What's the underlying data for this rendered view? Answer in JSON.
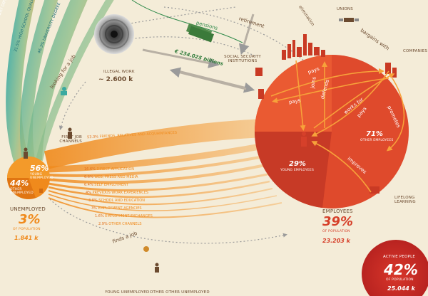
{
  "colors": {
    "background": "#f4ecd8",
    "orange": "#f08a1c",
    "red": "#d6402a",
    "dark_red": "#b83220",
    "teal": "#3aa9a0",
    "brown": "#6b4a2f"
  },
  "top_left_labels": {
    "diploma": "ARY DIPLOMA",
    "high_school": "31.5% HIGH SCHOOL QUALIFICATION",
    "university": "46.3% UNIVERSITY DEGREE"
  },
  "looking_for_job": "looking for a job",
  "illegal_work": {
    "label": "ILLEGAL WORK",
    "value": "~ 2.600 k"
  },
  "pensions": {
    "label": "pensions",
    "value": "€ 234.025 billions"
  },
  "retirement": "retirement",
  "elimination": "elimination",
  "social_security": "SOCIAL SECURITY INSTITUTIONS",
  "unions": "UNIONS",
  "bargains_with": "bargains with",
  "companies": "COMPANIES",
  "lifelong_learning": "LIFELONG LEARNING",
  "first_job_channels": "FIRST JOB CHANNELS",
  "finds_a_job": "finds a job",
  "channels": [
    {
      "pct": "53.3%",
      "label": "FRIENDS, RELATIVES AND ACQUAINTANCES"
    },
    {
      "pct": "16.6%",
      "label": "DIRECT APPLICATION"
    },
    {
      "pct": "6.6%",
      "label": "WEB, PRESS AND MEDIA"
    },
    {
      "pct": "6.4%",
      "label": "SELF EMPLOYMENT"
    },
    {
      "pct": "4%",
      "label": "PREVIOUS WORK EXPERIENCES"
    },
    {
      "pct": "3.8%",
      "label": "SCHOOL AND EDUCATION"
    },
    {
      "pct": "3%",
      "label": "EMPLOYMENT AGENCIES"
    },
    {
      "pct": "1.6%",
      "label": "EMPLOYMENT EXCHANGES"
    },
    {
      "pct": "2.9%",
      "label": "OTHER CHANNELS"
    }
  ],
  "unemployed_circle": {
    "young_pct": "56%",
    "young_label": "YOUNG UNEMPLOYED",
    "other_pct": "44%",
    "other_label": "OTHER UNEMPLOYED"
  },
  "unemployed_stat": {
    "title": "UNEMPLOYED",
    "pct": "3%",
    "sub": "OF POPULATION",
    "value": "1.841 k"
  },
  "employed_circle": {
    "young_pct": "29%",
    "young_label": "YOUNG EMPLOYEES",
    "other_pct": "71%",
    "other_label": "OTHER EMPLOYEES"
  },
  "employees_stat": {
    "title": "EMPLOYEES",
    "pct": "39%",
    "sub": "OF POPULATION",
    "value": "23.203 k"
  },
  "active_people": {
    "title": "ACTIVE PEOPLE",
    "pct": "42%",
    "sub": "OF POPULATION",
    "value": "25.044 k"
  },
  "relations": {
    "pays_1": "pays",
    "joins": "joins",
    "defends": "defends",
    "pays_2": "pays",
    "works_for": "works for",
    "pays_3": "pays",
    "promotes": "promotes",
    "improves": "improves"
  },
  "bottom_labels": {
    "young_unemployed": "YOUNG UNEMPLOYED",
    "other_unemployed": "OTHER OTHER UNEMPLOYED"
  }
}
